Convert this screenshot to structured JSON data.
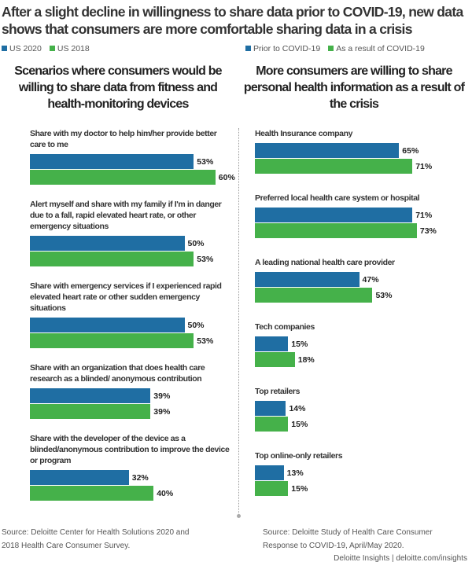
{
  "title": "After a slight decline in willingness to share data prior to COVID-19, new data shows that consumers are more comfortable sharing data in a crisis",
  "colors": {
    "blue": "#1f6ea3",
    "green": "#45b14a"
  },
  "chart_data": [
    {
      "type": "bar",
      "orientation": "horizontal",
      "title": "Scenarios where consumers would be willing to share data from fitness and health-monitoring devices",
      "legend_position": "top-left",
      "categories": [
        "Share with my doctor to help him/her provide better care to me",
        "Alert myself and share with my family if I'm in danger due to a fall, rapid elevated heart rate, or other emergency situations",
        "Share with emergency services if I experienced rapid elevated heart rate or other sudden emergency situations",
        "Share with an organization that does health care research as a blinded/ anonymous contribution",
        "Share with the developer of the device as a blinded/anonymous contribution to improve the device or program"
      ],
      "series": [
        {
          "name": "US 2020",
          "color": "#1f6ea3",
          "values": [
            53,
            50,
            50,
            39,
            32
          ],
          "labels": [
            "53%",
            "50%",
            "50%",
            "39%",
            "32%"
          ]
        },
        {
          "name": "US 2018",
          "color": "#45b14a",
          "values": [
            60,
            53,
            53,
            39,
            40
          ],
          "labels": [
            "60%",
            "53%",
            "53%",
            "39%",
            "40%"
          ]
        }
      ],
      "source": "Source: Deloitte Center for Health Solutions 2020 and 2018 Health Care Consumer Survey."
    },
    {
      "type": "bar",
      "orientation": "horizontal",
      "title": "More consumers are willing to share personal health information as a result of the crisis",
      "legend_position": "top-right",
      "categories": [
        "Health Insurance company",
        "Preferred local health care system or hospital",
        "A leading national health care provider",
        "Tech companies",
        "Top retailers",
        "Top online-only retailers"
      ],
      "series": [
        {
          "name": "Prior to COVID-19",
          "color": "#1f6ea3",
          "values": [
            65,
            71,
            47,
            15,
            14,
            13
          ],
          "labels": [
            "65%",
            "71%",
            "47%",
            "15%",
            "14%",
            "13%"
          ]
        },
        {
          "name": "As a result of COVID-19",
          "color": "#45b14a",
          "values": [
            71,
            73,
            53,
            18,
            15,
            15
          ],
          "labels": [
            "71%",
            "73%",
            "53%",
            "18%",
            "15%",
            "15%"
          ]
        }
      ],
      "source": "Source: Deloitte Study of Health Care Consumer Response to COVID-19, April/May 2020."
    }
  ],
  "credit": "Deloitte Insights | deloitte.com/insights"
}
